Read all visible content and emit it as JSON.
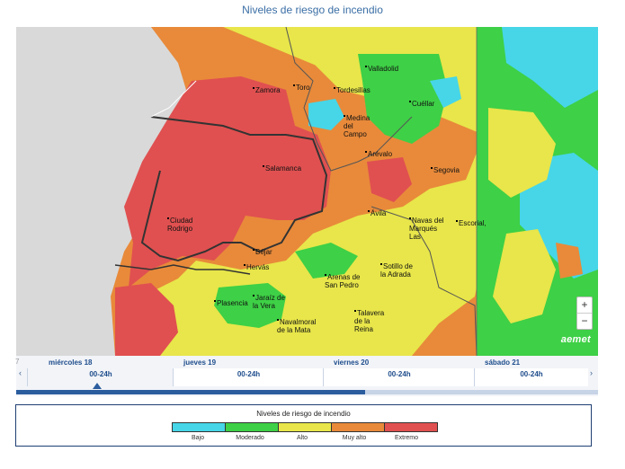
{
  "title": "Niveles de riesgo de incendio",
  "colors": {
    "bajo": "#46d6e8",
    "moderado": "#3ed046",
    "alto": "#e8e64a",
    "muy_alto": "#e88a3a",
    "extremo": "#e05050",
    "outside": "#d9d9d9"
  },
  "cities": [
    {
      "name": "Zamora"
    },
    {
      "name": "Toro"
    },
    {
      "name": "Tordesillas"
    },
    {
      "name": "Valladolid"
    },
    {
      "name": "Cuéllar"
    },
    {
      "name": "Medina\ndel\nCampo"
    },
    {
      "name": "Arévalo"
    },
    {
      "name": "Salamanca"
    },
    {
      "name": "Segovia"
    },
    {
      "name": "Ávila"
    },
    {
      "name": "Ciudad\nRodrigo"
    },
    {
      "name": "Navas del\nMarqués\nLas"
    },
    {
      "name": "Escorial,"
    },
    {
      "name": "Béjar"
    },
    {
      "name": "Hervás"
    },
    {
      "name": "Arenas de\nSan Pedro"
    },
    {
      "name": "Sotillo de\nla Adrada"
    },
    {
      "name": "Plasencia"
    },
    {
      "name": "Jaraíz de\nla Vera"
    },
    {
      "name": "Navalmoral\nde la Mata"
    },
    {
      "name": "Talavera\nde la\nReina"
    }
  ],
  "map_controls": {
    "zoom_in": "+",
    "zoom_out": "−",
    "logo": "aemet"
  },
  "timeline": {
    "prev_arrow": "‹",
    "next_arrow": "›",
    "prefix": "7",
    "days": [
      {
        "label": "miércoles 18",
        "slot": "00-24h"
      },
      {
        "label": "jueves 19",
        "slot": "00-24h"
      },
      {
        "label": "viernes 20",
        "slot": "00-24h"
      },
      {
        "label": "sábado 21",
        "slot": "00-24h"
      }
    ],
    "selected_index": 0,
    "progress_fraction": 0.6
  },
  "legend": {
    "title": "Niveles de riesgo de incendio",
    "items": [
      {
        "label": "Bajo",
        "color": "#46d6e8"
      },
      {
        "label": "Moderado",
        "color": "#3ed046"
      },
      {
        "label": "Alto",
        "color": "#e8e64a"
      },
      {
        "label": "Muy alto",
        "color": "#e88a3a"
      },
      {
        "label": "Extremo",
        "color": "#e05050"
      }
    ]
  }
}
